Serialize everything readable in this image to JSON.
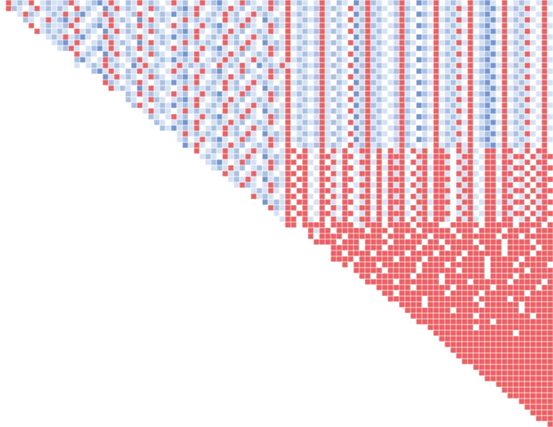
{
  "colors": {
    "r": "#ef5f61",
    "d": "#7297d0",
    "m": "#a9c1e7",
    "l": "#d6e2f5",
    "w": "#ffffff"
  },
  "rows": [
    "wrlmlrwlmllmrlwlmdlrlwmlrlmlwlrlmwlrlmdlwlrmlwlrmlrlmlwlrlwmlwdlrmlwlmrlwdmlrwlmlwrlmdlwrwlmlwlrl",
    "rmlwlrlmlmlwrlmlwdlrlmlwlrmlwlmdlrlwlmlrlmwlmlrlwrwlmlmrlmlwrlmrlmlwlrmlwlwrlmlrlrwlmdlrlmlrlwrw",
    "lrmlwlmlrlmdlwlrmlwlmrlwlmldlmlrwlmlrlmwlrlmlwlrlmlwlrlwmlwdlrmlwlmrlwdmlrwlmlwrlmdlwrwlmlwlrl",
    "mlwlrlmdlrlwlmlrlmlwdlrlmlwlrlmlmlwrlmlrlwdlmlrwlmlmrlmlwrlmrlmlwlrmlwlwrlmlrlrwlmdlrlmlrlwrw",
    "rwlmllmrlwlmdlrlwmlrlmlwlrlmwlrlmdlwlrmlwlrmlrlmlwlrlwmlwdlrmlwlmrlwdmlrwlmlwrlmdlwrwlmlwlrl",
    "rlmlmlwrlmlwdlrlmlwlrmlwlmdlrlwlmlrlmwlmlrlwrwlmlmrlmlwrlmrlmlwlrmlwlwrlmlrlrwlmdlrlmlrlwrw",
    "lmlrlmdlwlrmlwlmrlwlmldlmlrwlmlrlmwlrlmlwlrlmlwlrlwmlwdlrmlwlmrlwdmlrwlmlwrlmdlwrwlmlwlrl",
    "lmdlrlwlmlrlmlwdlrlmlwlrlmlmlwrlmlrlwdlmlrwlmlmrlmlwrlmrlmlwlrmlwlwrlmlrlrwlmdlrlmlrlwrw",
    "lmrlwlmdlrlwmlrlmlwlrlmwlrlmdlwlrmlwlrmlrlmlwlrlwmlwdlrmlwlmrlwdmlrwlmlwrlmdlwrwlmlwlrl",
    "wrlmlwdlrlmlwlrmlwlmdlrlwlmlrlmwlmlrlwrwlmlmrlmlwrlmrlmlwlrmlwlwrlmlrlrwlmdlrlmlrlwrw",
    "mdlwlrmlwlmrlwlmldlmlrwlmlrlmwlrlmlwlrlmlwlrlwmlwdlrmlwlmrlwdmlrwlmlwrlmdlwrwlmlwlrl",
    "lwlmlrlmlwdlrlmlwlrlmlmlwrlmlrlwdlmlrlwlmlmrlmlwrlmrlmlwlrmlwlwrlmlrlrwlmdlrlmlrlwrw",
    "mdlrlwmlrlmlwlrlmwlrlmdlwlrmlwlrmlrlmlwlrlwmlwdlrmlwlmrlwdmlrwlmlwrlmdlwrwlmlwlrl",
    "wdlrlmlwlrmlwlmdlrlwlmlrlmwlmlrlwrwlmlmrlmlwrlmrlmlwlrmlwlwrlmlrlrwlmdlrlmlrlwrw",
    "rmlwlmrlwlmldlmlrwlmlrlmwlrlmlwlrlmlwlrlwmlwdlrmlwlmrlwdmlrwlmlwrlmdlwrwlmlwlrl",
    "rlmlwdlrlmlwlrlmlmlwrlmlrlwdlmlrwlmlmrlmlwrlmrlmlwlrmlwlwrlmlrlrwlmdlrlmlrlwrw",
    "wmlrlmlwlrlmwlrlmdlwlrmlwlrmlrlmlwlrlwmlwdlrmlwlmrlwdmlrwlmlwrlmdlwrwlmlwlrl",
    "mlwlrmlwlmdlrlwlmlrlmwlmlrlwrwlmlmrlmlwrlmrlmlwlrmlwlwrlmlrlrwlmdlrlmlrlwrw",
    "mrlwlmldlmlrwlmlrlmwlrlmlwlrlmlwlrlwmlwdlrmlwlmrlwdmlrwlmlwrlmdlwrwlmlwlrl",
    "lrlmlwlrlmlmlwrlmlrlwdlmlrwlmlmrlmlwrlmrlmlwlrmlwlwrlmlrlrwlmdlrlmlrlwrw",
    "mlwlrlmwlrlmdlwlrmlwlrmlrlmlwlrlwmlwdlrmlwlmrlwdmlrwlmlwrlmdlwrwlmlwlrl",
    "mlwlmdlrlwlmlrlmwlmlrlwrwlmlmrlmlwrlmrlmlwlrmlwlwrlmlrlrwlmdlrlmlrlwrw",
    "mldlmlrwlmlrlmwlrlmlwlrlmlwlrlwmlwdlrmlwlmrlwdmlrwlmlwrlmdlwrwlmlwlrl",
    "wlrlmlmlwrlmlrlwdlmlrwlmlmrlmlwrlmrlmlwlrmlwlwrlmlrlrwlmdlrlmlrlwrw",
    "lmwlrlmdlwlrmlwlrmlrlmlwlrlwmlwdlrmlwlmrlwdmlrwlmlwrlmdlwrwlmlwlrl",
    "dlrlwlmlrlmwlmlrlwrwlmlmrlmlwrlmrlmlwlrmlwlwrlmlrlrwlmdlrlmlrlwrw",
    "rwlmlrlmwlrlmlwlrrwrlwrwrlrwlrrlrwrlrwrlrwrrlwrlrlwrrwrrwlrwrrw",
    "lmlwrlmlrlwdlmlrwrrwlrrlwrrwlrwrlrrrlwrrlrrrwlrrwlrrlrlrrwrlrr",
    "lmdlwlrmlwlrmlrrwrlwrwrlrwlrrlrwrlrwrlrwrrlwrlrlwrrwrrwlrwrrw",
    "lmlrlmwlmlrlwrwrrwlrrlwrrwlrwrlrrrlwrrlrrrwlrrwlrrlrlrrwrlrr",
    "rlmwlrlmlwlrrwrlwrwrlrwlrrlrwrlrwrlrwrrlwrlrlwrrwrrwlrwrrw",
    "lmlrlwdlmlrwrrwlrrlwrrwlrwrlrrrlwrrlrrrwlrrwlrrlrlrrwrlrr",
    "lrmlwlrmlrrwrlwrwrlrwlrrlrwrlrwrlrwrrlwrlrlwrrwrrwlrwrrw",
    "wlmlrlwrwrrwlrrlwrrwlrwrlrrrlwrrlrrrwlrrwlrrlrlrrwrlrr",
    "rlmlwlrrwrlwrwrlrwlrrlrwrlrwrlrwrrlwrlrlwrrwrrwlrwrrw",
    "wdlmlrwrrwlrrlwrrwlrwrlrrrlwrrlrrrwlrrwlrrlrlrrwrlrr",
    "rmlrrwrlwrwrlrwlrrlrwrlrwrlrwrrlwrlrlwrrwrrwlrwrrw",
    "lwrwrrwlrrlwrrwlrwrlrrrlwrrlrrrwlrrwlrrlrlrrwrlrr",
    "lrrwrlwrwrlrwlrrlrwrlrwrlrwrrlwrlrlwrrwrrwlrwrrw",
    "rrwrrrrwrrrrwlrrrwrrrrwrrrrwwrrrrrwrrrrrwrrrrwr",
    "wrlrrwrrrrrwrrrwrrrrwrrrrrwrrrwrrrrwrrrrwrrr",
    "rwrrrrwrrrrrrwrrrwrrrwrrrrwrrrrrrwrrrwrrrrr",
    "rrrrwrrrwrrrrwrrrrrwrrwrrrrrwrrrrwrrrrwrrr",
    "wrrrrrwrrrwrrrrrwrrrrwrrrrrwrrrwrrrrrwrr",
    "rrwrrrrwrrrrrwrrrrwrrrrwrrrrrrwrrrrwrrr",
    "rrrrwrrrrrrwrrrrwrrrrrwrrrrwrrrrrwrrrrr",
    "rwrrrrwrrrrrrwrrrrwrrrrrrwrrrrwrrrrrw",
    "rrrrrwrrrrrwrrrrrrwrrrrwrrrrrrwrrrr",
    "rrwrrrrrrwrrrrwrrrrrrrwrrrrwrrrrrr",
    "rrrrrwrrrrrrrwrrrrwrrrrrrwrrrrrwr",
    "rrrrrrwrrrrrrwrrrrrrwrrrrrrrwrr",
    "rrwrrrrrrrrwrrrrrwrrrrrrrwrrrr",
    "rrrrrrwrrrrrrrrwrrrrrwrrrrrrr",
    "rrrrwrrrrrrrrrwrrrrrrwrrrrr",
    "rrrrrrrrwrrrrrrrrrrrwrrrrr",
    "rrrrrrrrrrrwrrrrrrrrrwrrr",
    "rrrrrrrrrrrrrwrrrrrrrrrr",
    "rrrrrrrrwrrrrrrrrrrrrr",
    "rrrrrrrrrrrrrrwrrrrrr",
    "rrrrrrrrrrrrrrrrrrrr",
    "rrrrrrrrrrrrrrrrrrr",
    "rrrrrrrrrrrrrrrrrr",
    "rrrrrrrrrrrrrrrrr",
    "rrrrrrrrrrrrrrrr",
    "rrrrrrrrrrrrrr",
    "rrrrrrrrrrrrr",
    "rrrrrrrrrrrr",
    "rrrrrrrrrr",
    "rrrrrrrrr",
    "rrrrrrrr",
    "rrrrrr",
    "rrrrr",
    "rrrr",
    "rrr",
    "r"
  ]
}
